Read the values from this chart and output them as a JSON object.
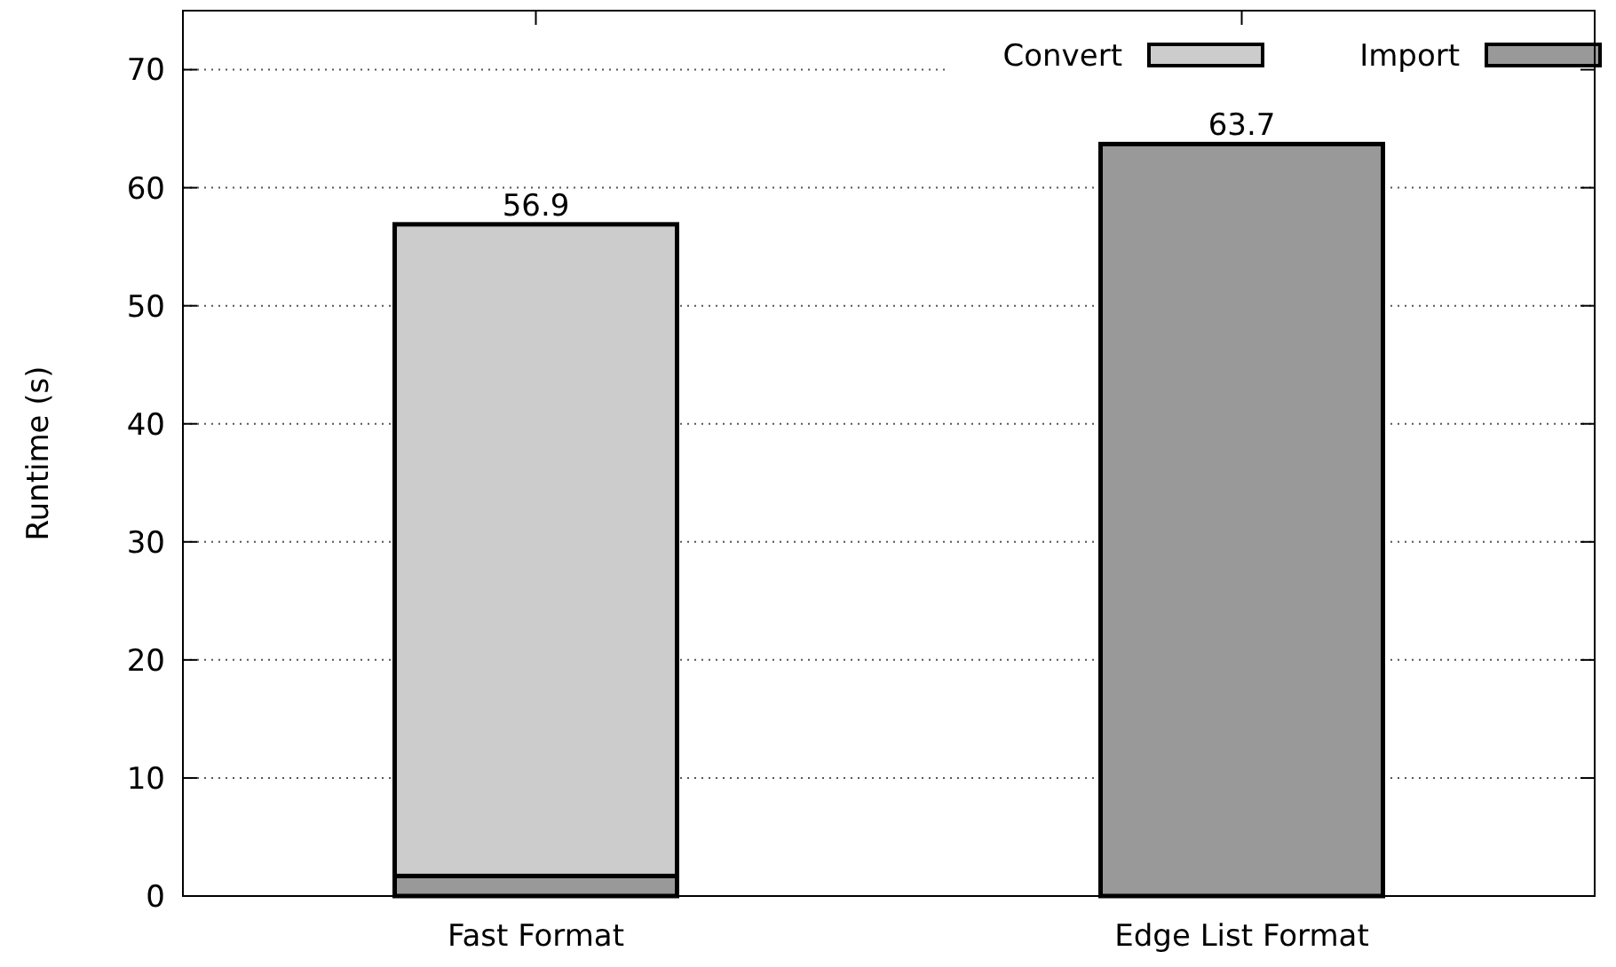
{
  "chart_data": {
    "type": "bar",
    "stacked": true,
    "ylabel": "Runtime (s)",
    "categories": [
      "Fast Format",
      "Edge List Format"
    ],
    "series": [
      {
        "name": "Import",
        "color": "#999999",
        "values": [
          1.7,
          63.7
        ]
      },
      {
        "name": "Convert",
        "color": "#cccccc",
        "values": [
          55.2,
          0
        ]
      }
    ],
    "totals": [
      "56.9",
      "63.7"
    ],
    "ylim": [
      0,
      75
    ],
    "yticks": [
      0,
      10,
      20,
      30,
      40,
      50,
      60,
      70
    ],
    "grid": "y",
    "legend": "top right"
  }
}
